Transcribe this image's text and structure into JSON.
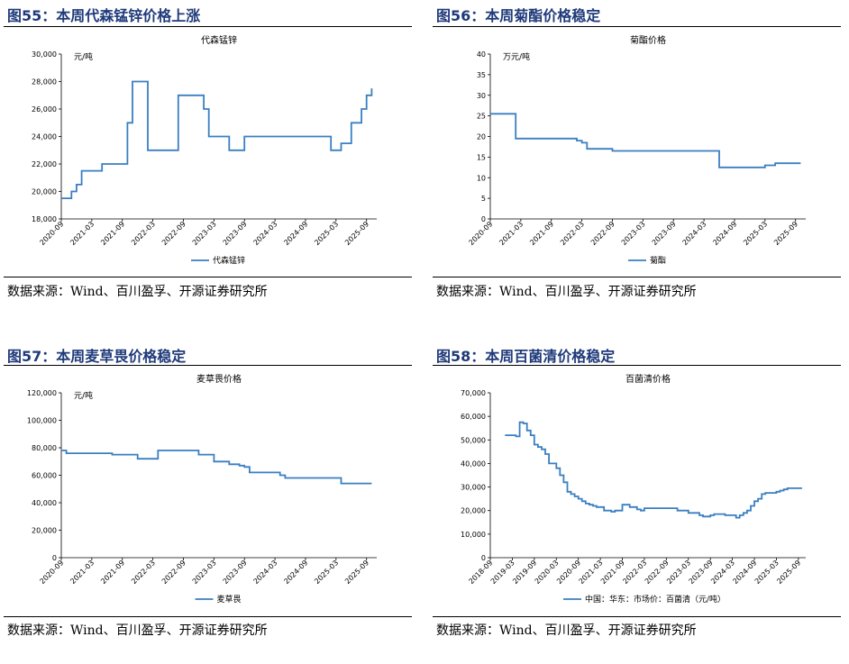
{
  "panels": [
    {
      "fig_title": "图55：本周代森锰锌价格上涨",
      "source": "数据来源：Wind、百川盈孚、开源证券研究所"
    },
    {
      "fig_title": "图56：本周菊酯价格稳定",
      "source": "数据来源：Wind、百川盈孚、开源证券研究所"
    },
    {
      "fig_title": "图57：本周麦草畏价格稳定",
      "source": "数据来源：Wind、百川盈孚、开源证券研究所"
    },
    {
      "fig_title": "图58：本周百菌清价格稳定",
      "source": "数据来源：Wind、百川盈孚、开源证券研究所"
    }
  ],
  "chart_data": [
    {
      "type": "line",
      "title": "代森锰锌",
      "unit": "元/吨",
      "legend": "代森锰锌",
      "legend_position": "bottom",
      "ylim": [
        18000,
        30000
      ],
      "yticks": [
        18000,
        20000,
        22000,
        24000,
        26000,
        28000,
        30000
      ],
      "ytick_labels": [
        "18,000",
        "20,000",
        "22,000",
        "24,000",
        "26,000",
        "28,000",
        "30,000"
      ],
      "xlim": [
        "2020-09",
        "2025-11"
      ],
      "xticks": [
        "2020-09",
        "2021-03",
        "2021-09",
        "2022-03",
        "2022-09",
        "2023-03",
        "2023-09",
        "2024-03",
        "2024-09",
        "2025-03",
        "2025-09"
      ],
      "color": "#3a7fc1",
      "x": [
        "2020-09",
        "2020-11",
        "2020-12",
        "2021-01",
        "2021-02",
        "2021-05",
        "2021-06",
        "2021-09",
        "2021-10",
        "2021-11",
        "2022-02",
        "2022-07",
        "2022-08",
        "2023-01",
        "2023-02",
        "2023-05",
        "2023-06",
        "2023-08",
        "2023-09",
        "2024-09",
        "2025-02",
        "2025-04",
        "2025-06",
        "2025-07",
        "2025-08",
        "2025-09",
        "2025-10",
        "2025-10"
      ],
      "y": [
        19500,
        20000,
        20500,
        21500,
        21500,
        22000,
        22000,
        22000,
        25000,
        28000,
        23000,
        23000,
        27000,
        26000,
        24000,
        24000,
        23000,
        23000,
        24000,
        24000,
        23000,
        23500,
        25000,
        25000,
        26000,
        27000,
        27000,
        27500
      ]
    },
    {
      "type": "line",
      "title": "菊酯价格",
      "unit": "万元/吨",
      "legend": "菊酯",
      "legend_position": "bottom",
      "ylim": [
        0,
        40
      ],
      "yticks": [
        0,
        5,
        10,
        15,
        20,
        25,
        30,
        35,
        40
      ],
      "ytick_labels": [
        "0",
        "5",
        "10",
        "15",
        "20",
        "25",
        "30",
        "35",
        "40"
      ],
      "xlim": [
        "2020-09",
        "2025-11"
      ],
      "xticks": [
        "2020-09",
        "2021-03",
        "2021-09",
        "2022-03",
        "2022-09",
        "2023-03",
        "2023-09",
        "2024-03",
        "2024-09",
        "2025-03",
        "2025-09"
      ],
      "color": "#3a7fc1",
      "x": [
        "2020-09",
        "2021-01",
        "2021-02",
        "2022-01",
        "2022-02",
        "2022-03",
        "2022-04",
        "2022-09",
        "2024-05",
        "2024-06",
        "2025-01",
        "2025-03",
        "2025-05",
        "2025-10"
      ],
      "y": [
        25.5,
        25.5,
        19.5,
        19.5,
        19,
        18.5,
        17,
        16.5,
        16.5,
        12.5,
        12.5,
        13,
        13.5,
        13.5
      ]
    },
    {
      "type": "line",
      "title": "麦草畏价格",
      "unit": "元/吨",
      "legend": "麦草畏",
      "legend_position": "bottom",
      "ylim": [
        0,
        120000
      ],
      "yticks": [
        0,
        20000,
        40000,
        60000,
        80000,
        100000,
        120000
      ],
      "ytick_labels": [
        "0",
        "20,000",
        "40,000",
        "60,000",
        "80,000",
        "100,000",
        "120,000"
      ],
      "xlim": [
        "2020-09",
        "2025-11"
      ],
      "xticks": [
        "2020-09",
        "2021-03",
        "2021-09",
        "2022-03",
        "2022-09",
        "2023-03",
        "2023-09",
        "2024-03",
        "2024-09",
        "2025-03",
        "2025-09"
      ],
      "color": "#3a7fc1",
      "x": [
        "2020-09",
        "2020-10",
        "2021-06",
        "2021-07",
        "2021-10",
        "2021-12",
        "2022-04",
        "2022-12",
        "2023-01",
        "2023-03",
        "2023-06",
        "2023-08",
        "2023-09",
        "2023-10",
        "2024-03",
        "2024-04",
        "2024-05",
        "2025-03",
        "2025-04",
        "2025-10"
      ],
      "y": [
        78000,
        76000,
        76000,
        75000,
        75000,
        72000,
        78000,
        75000,
        75000,
        70000,
        68000,
        67000,
        66000,
        62000,
        62000,
        60000,
        58000,
        58000,
        54000,
        54000
      ]
    },
    {
      "type": "line",
      "title": "百菌清价格",
      "unit": "",
      "legend": "中国：华东：市场价：百菌清（元/吨）",
      "legend_position": "bottom",
      "ylim": [
        0,
        70000
      ],
      "yticks": [
        0,
        10000,
        20000,
        30000,
        40000,
        50000,
        60000,
        70000
      ],
      "ytick_labels": [
        "0",
        "10,000",
        "20,000",
        "30,000",
        "40,000",
        "50,000",
        "60,000",
        "70,000"
      ],
      "xlim": [
        "2018-09",
        "2025-11"
      ],
      "xticks": [
        "2018-09",
        "2019-03",
        "2019-09",
        "2020-03",
        "2020-09",
        "2021-03",
        "2021-09",
        "2022-03",
        "2022-09",
        "2023-03",
        "2023-09",
        "2024-03",
        "2024-09",
        "2025-03",
        "2025-09"
      ],
      "color": "#3a7fc1",
      "x": [
        "2019-01",
        "2019-04",
        "2019-05",
        "2019-06",
        "2019-07",
        "2019-08",
        "2019-09",
        "2019-10",
        "2019-11",
        "2019-12",
        "2020-01",
        "2020-02",
        "2020-03",
        "2020-04",
        "2020-05",
        "2020-06",
        "2020-07",
        "2020-08",
        "2020-09",
        "2020-10",
        "2020-11",
        "2020-12",
        "2021-01",
        "2021-02",
        "2021-04",
        "2021-06",
        "2021-07",
        "2021-09",
        "2021-10",
        "2021-11",
        "2022-01",
        "2022-02",
        "2022-03",
        "2022-06",
        "2022-07",
        "2022-09",
        "2022-12",
        "2023-03",
        "2023-06",
        "2023-07",
        "2023-09",
        "2023-10",
        "2023-12",
        "2024-01",
        "2024-03",
        "2024-04",
        "2024-05",
        "2024-06",
        "2024-07",
        "2024-08",
        "2024-09",
        "2024-10",
        "2024-11",
        "2024-12",
        "2025-01",
        "2025-02",
        "2025-03",
        "2025-04",
        "2025-05",
        "2025-06",
        "2025-07",
        "2025-10"
      ],
      "y": [
        52000,
        51500,
        57500,
        57000,
        54000,
        52000,
        48000,
        47000,
        46000,
        44000,
        40000,
        40000,
        38000,
        35000,
        32000,
        28000,
        27000,
        26000,
        25000,
        24000,
        23000,
        22500,
        22000,
        21500,
        20000,
        19500,
        20000,
        22500,
        22500,
        21500,
        20500,
        20000,
        21000,
        21000,
        21000,
        21000,
        20000,
        19000,
        18000,
        17500,
        18000,
        18500,
        18500,
        18000,
        18000,
        17000,
        18000,
        19000,
        20000,
        22000,
        24000,
        25000,
        27000,
        27500,
        27500,
        27500,
        28000,
        28500,
        29000,
        29500,
        29500,
        29500
      ]
    }
  ]
}
